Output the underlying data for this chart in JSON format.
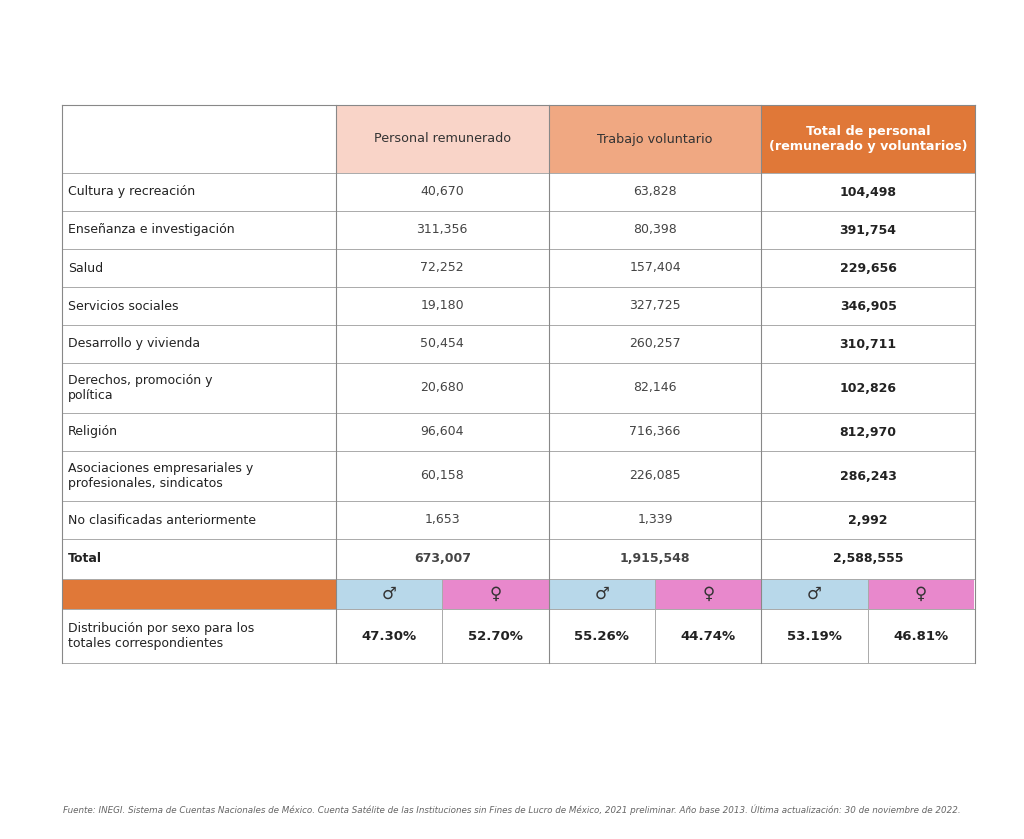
{
  "header_col1": "Personal remunerado",
  "header_col2": "Trabajo voluntario",
  "header_col3": "Total de personal\n(remunerado y voluntarios)",
  "rows": [
    [
      "Cultura y recreación",
      "40,670",
      "63,828",
      "104,498"
    ],
    [
      "Enseñanza e investigación",
      "311,356",
      "80,398",
      "391,754"
    ],
    [
      "Salud",
      "72,252",
      "157,404",
      "229,656"
    ],
    [
      "Servicios sociales",
      "19,180",
      "327,725",
      "346,905"
    ],
    [
      "Desarrollo y vivienda",
      "50,454",
      "260,257",
      "310,711"
    ],
    [
      "Derechos, promoción y\npolítica",
      "20,680",
      "82,146",
      "102,826"
    ],
    [
      "Religión",
      "96,604",
      "716,366",
      "812,970"
    ],
    [
      "Asociaciones empresariales y\nprofesionales, sindicatos",
      "60,158",
      "226,085",
      "286,243"
    ],
    [
      "No clasificadas anteriormente",
      "1,653",
      "1,339",
      "2,992"
    ],
    [
      "Total",
      "673,007",
      "1,915,548",
      "2,588,555"
    ]
  ],
  "gender_row": [
    "♂",
    "♀",
    "♂",
    "♀",
    "♂",
    "♀"
  ],
  "dist_row": [
    "47.30%",
    "52.70%",
    "55.26%",
    "44.74%",
    "53.19%",
    "46.81%"
  ],
  "dist_label": "Distribución por sexo para los\ntotales correspondientes",
  "footer": "Fuente: INEGI. Sistema de Cuentas Nacionales de México. Cuenta Satélite de las Instituciones sin Fines de Lucro de México, 2021 preliminar. Año base 2013. Última actualización: 30 de noviembre de 2022.",
  "color_header1": "#f9d4c8",
  "color_header2": "#f0a882",
  "color_header3": "#e07838",
  "color_orange_bar": "#e07838",
  "color_male": "#b8d8ea",
  "color_female": "#e888cc",
  "bg_color": "#ffffff",
  "line_color": "#aaaaaa",
  "text_dark": "#222222",
  "text_mid": "#444444",
  "footer_color": "#666666"
}
